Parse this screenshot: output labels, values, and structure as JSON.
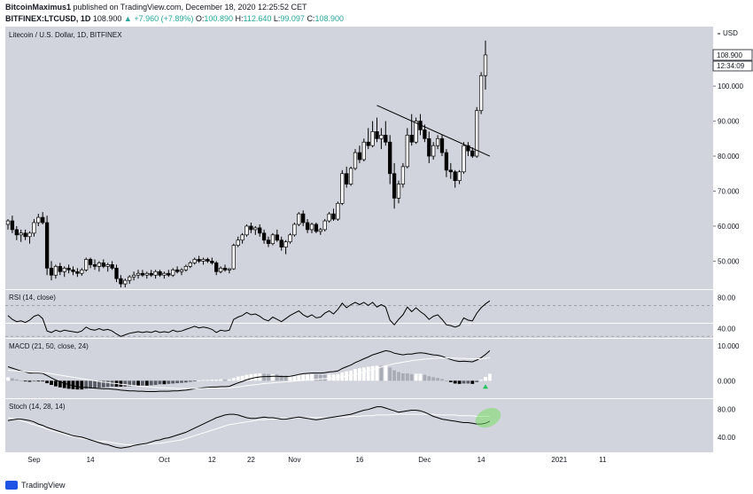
{
  "header": {
    "author": "BitcoinMaximus1",
    "published": "published on TradingView.com, December 18, 2020 12:25:52 CET",
    "symbol": "BITFINEX:LTCUSD, 1D",
    "last": "108.900",
    "change": "▲ +7.960 (+7.89%)",
    "o_label": "O:",
    "o": "100.890",
    "h_label": "H:",
    "h": "112.640",
    "l_label": "L:",
    "l": "99.097",
    "c_label": "C:",
    "c": "108.900"
  },
  "footer": {
    "brand": "TradingView"
  },
  "chart_data": {
    "type": "candlestick",
    "title": "Litecoin / U.S. Dollar, 1D, BITFINEX",
    "currency": "USD",
    "price_labels": {
      "last": "108.900",
      "countdown": "12:34:09"
    },
    "y_ticks": [
      "50.000",
      "60.000",
      "70.000",
      "80.000",
      "90.000",
      "100.000"
    ],
    "ylim": [
      42,
      117
    ],
    "x_ticks": [
      {
        "label": "Sep",
        "i": 6
      },
      {
        "label": "14",
        "i": 19
      },
      {
        "label": "Oct",
        "i": 36
      },
      {
        "label": "12",
        "i": 47
      },
      {
        "label": "22",
        "i": 56
      },
      {
        "label": "Nov",
        "i": 66
      },
      {
        "label": "16",
        "i": 81
      },
      {
        "label": "Dec",
        "i": 96
      },
      {
        "label": "14",
        "i": 109
      },
      {
        "label": "2021",
        "i": 127
      },
      {
        "label": "11",
        "i": 137
      }
    ],
    "candles": [
      [
        60.5,
        62,
        59,
        61.5
      ],
      [
        61.5,
        63,
        58,
        59
      ],
      [
        59,
        60,
        56,
        57.5
      ],
      [
        57.5,
        59,
        55.5,
        58
      ],
      [
        58,
        59,
        56,
        57
      ],
      [
        57,
        58.5,
        55,
        58
      ],
      [
        58,
        62,
        57,
        61
      ],
      [
        61,
        63.5,
        60,
        62.5
      ],
      [
        62.5,
        64,
        60.5,
        61
      ],
      [
        61,
        63,
        46,
        48
      ],
      [
        48,
        50,
        44.5,
        46
      ],
      [
        46,
        49,
        45,
        48.5
      ],
      [
        48.5,
        49.5,
        46,
        47
      ],
      [
        47,
        48.5,
        45.5,
        48
      ],
      [
        48,
        49,
        46.5,
        47.5
      ],
      [
        47.5,
        48.5,
        46,
        47
      ],
      [
        47,
        48,
        45.5,
        46.5
      ],
      [
        46.5,
        48,
        45.8,
        47.5
      ],
      [
        47.5,
        51,
        47,
        50.5
      ],
      [
        50.5,
        51,
        48,
        49
      ],
      [
        49,
        50.5,
        47.5,
        48.5
      ],
      [
        48.5,
        50,
        47,
        49.5
      ],
      [
        49.5,
        50.5,
        48,
        48.5
      ],
      [
        48.5,
        49.5,
        47,
        49
      ],
      [
        49,
        50,
        47.5,
        48
      ],
      [
        48,
        49,
        44,
        45
      ],
      [
        45,
        46,
        42.5,
        43.5
      ],
      [
        43.5,
        45,
        42.5,
        44.5
      ],
      [
        44.5,
        46,
        43.5,
        45.5
      ],
      [
        45.5,
        47,
        44.5,
        46
      ],
      [
        46,
        47.5,
        45,
        46.5
      ],
      [
        46.5,
        47.5,
        45.5,
        46
      ],
      [
        46,
        47,
        45,
        46.5
      ],
      [
        46.5,
        47.5,
        45.5,
        46
      ],
      [
        46,
        47.5,
        45,
        47
      ],
      [
        47,
        47.5,
        45.5,
        46
      ],
      [
        46,
        47,
        45,
        46.5
      ],
      [
        46.5,
        47.5,
        45.5,
        46
      ],
      [
        46,
        48,
        45.5,
        47.5
      ],
      [
        47.5,
        48.5,
        46.5,
        47
      ],
      [
        47,
        48,
        46,
        47.5
      ],
      [
        47.5,
        49,
        47,
        48.5
      ],
      [
        48.5,
        50,
        48,
        49.5
      ],
      [
        49.5,
        51,
        49,
        50.5
      ],
      [
        50.5,
        51.5,
        49.5,
        50
      ],
      [
        50,
        51,
        49,
        50.5
      ],
      [
        50.5,
        51,
        49.5,
        50
      ],
      [
        50,
        51,
        49,
        49.5
      ],
      [
        49.5,
        50,
        46,
        47
      ],
      [
        47,
        48.5,
        46.5,
        48
      ],
      [
        48,
        49,
        47,
        47.5
      ],
      [
        47.5,
        48,
        46.5,
        47.8
      ],
      [
        47.8,
        55,
        47.5,
        54.5
      ],
      [
        54.5,
        57,
        54,
        56
      ],
      [
        56,
        58,
        55,
        57.5
      ],
      [
        57.5,
        60.5,
        57,
        60
      ],
      [
        60,
        61,
        58,
        59
      ],
      [
        59,
        60,
        57.5,
        59.5
      ],
      [
        59.5,
        60.5,
        57,
        58
      ],
      [
        58,
        59,
        55,
        56
      ],
      [
        56,
        57,
        54,
        55
      ],
      [
        55,
        58,
        54.5,
        57.5
      ],
      [
        57.5,
        59,
        55.5,
        56
      ],
      [
        56,
        57,
        53,
        54
      ],
      [
        54,
        56,
        52,
        55.5
      ],
      [
        55.5,
        58,
        55,
        57.5
      ],
      [
        57.5,
        61,
        57,
        60.5
      ],
      [
        60.5,
        64,
        60,
        63.5
      ],
      [
        63.5,
        64.5,
        60,
        61
      ],
      [
        61,
        62,
        58,
        59
      ],
      [
        59,
        61,
        58,
        60.5
      ],
      [
        60.5,
        61,
        58,
        58.5
      ],
      [
        58.5,
        59.5,
        57.5,
        59
      ],
      [
        59,
        62,
        58.5,
        61.5
      ],
      [
        61.5,
        64,
        61,
        63.5
      ],
      [
        63.5,
        65,
        61.5,
        62
      ],
      [
        62,
        67,
        61.5,
        66.5
      ],
      [
        66.5,
        76,
        66,
        75
      ],
      [
        75,
        77,
        71,
        72
      ],
      [
        72,
        77,
        71.5,
        76.5
      ],
      [
        76.5,
        82,
        76,
        81
      ],
      [
        81,
        83,
        78,
        79
      ],
      [
        79,
        85,
        78.5,
        84
      ],
      [
        84,
        88,
        82,
        83
      ],
      [
        83,
        90,
        82.5,
        87
      ],
      [
        87,
        91,
        84,
        85
      ],
      [
        85,
        88,
        82,
        86
      ],
      [
        86,
        90,
        83,
        84
      ],
      [
        84,
        86,
        72,
        75
      ],
      [
        75,
        78,
        65,
        68
      ],
      [
        68,
        73,
        66.5,
        72
      ],
      [
        72,
        78,
        71,
        77
      ],
      [
        77,
        88,
        76.5,
        86
      ],
      [
        86,
        92,
        83,
        84
      ],
      [
        84,
        91,
        83.5,
        90
      ],
      [
        90,
        92,
        86,
        87.5
      ],
      [
        87.5,
        89,
        84,
        85
      ],
      [
        85,
        87,
        78,
        80
      ],
      [
        80,
        84,
        79,
        83
      ],
      [
        83,
        86,
        82,
        85
      ],
      [
        85,
        86,
        80,
        81
      ],
      [
        81,
        82,
        74,
        76
      ],
      [
        76,
        78,
        73.5,
        75.5
      ],
      [
        75.5,
        76,
        71,
        73
      ],
      [
        73,
        76,
        72,
        75.5
      ],
      [
        75.5,
        84,
        75,
        83
      ],
      [
        83,
        84,
        80,
        81.5
      ],
      [
        81.5,
        82.5,
        79.5,
        80
      ],
      [
        80,
        94,
        79.5,
        93
      ],
      [
        93,
        104,
        92,
        103
      ],
      [
        103,
        113,
        99,
        108.9
      ]
    ],
    "trendline": {
      "from": {
        "i": 85,
        "price": 94.5
      },
      "to": {
        "i": 111,
        "price": 80
      }
    },
    "rsi": {
      "label": "RSI (14, close)",
      "y_ticks": [
        "80.00",
        "40.00"
      ],
      "ylim": [
        28,
        90
      ],
      "upper": 70,
      "lower": 30,
      "signal": 47,
      "values": [
        57,
        52,
        49,
        50,
        48,
        51,
        56,
        58,
        53,
        37,
        35,
        38,
        36,
        38,
        37,
        36,
        35,
        37,
        42,
        39,
        38,
        40,
        38,
        39,
        37,
        33,
        30,
        32,
        34,
        35,
        36,
        35,
        36,
        35,
        37,
        35,
        36,
        35,
        38,
        36,
        37,
        39,
        41,
        43,
        41,
        42,
        41,
        39,
        35,
        38,
        37,
        38,
        52,
        55,
        57,
        61,
        58,
        59,
        56,
        52,
        50,
        55,
        52,
        49,
        53,
        57,
        60,
        63,
        58,
        55,
        58,
        54,
        55,
        60,
        63,
        59,
        65,
        73,
        67,
        71,
        74,
        71,
        74,
        70,
        74,
        68,
        71,
        68,
        51,
        45,
        52,
        58,
        68,
        62,
        67,
        62,
        58,
        52,
        56,
        58,
        52,
        45,
        44,
        42,
        44,
        54,
        51,
        50,
        60,
        67,
        72,
        76
      ]
    },
    "macd": {
      "label": "MACD (21, 50, close, 24)",
      "y_ticks": [
        "10.000",
        "0.000"
      ],
      "ylim": [
        -5,
        12
      ],
      "macd": [
        4,
        3.6,
        3.2,
        2.8,
        2.5,
        2.2,
        2.2,
        2.2,
        2.1,
        1.5,
        0.8,
        0.2,
        -0.3,
        -0.7,
        -1.1,
        -1.4,
        -1.7,
        -1.9,
        -1.9,
        -2.0,
        -2.1,
        -2.2,
        -2.3,
        -2.3,
        -2.4,
        -2.5,
        -2.7,
        -2.8,
        -2.9,
        -2.9,
        -3.0,
        -3.0,
        -3.1,
        -3.1,
        -3.1,
        -3.0,
        -3.0,
        -3.0,
        -2.9,
        -2.9,
        -2.8,
        -2.7,
        -2.5,
        -2.3,
        -2.1,
        -2.0,
        -1.9,
        -1.8,
        -1.8,
        -1.7,
        -1.7,
        -1.6,
        -1.1,
        -0.6,
        -0.2,
        0.3,
        0.6,
        0.9,
        1.1,
        1.2,
        1.2,
        1.3,
        1.3,
        1.2,
        1.2,
        1.3,
        1.5,
        1.8,
        2.0,
        2.1,
        2.2,
        2.2,
        2.2,
        2.3,
        2.5,
        2.6,
        2.8,
        3.5,
        4.0,
        4.5,
        5.2,
        5.7,
        6.3,
        6.8,
        7.4,
        7.8,
        8.2,
        8.6,
        8.4,
        7.9,
        7.6,
        7.4,
        7.6,
        7.6,
        7.9,
        8.0,
        7.9,
        7.6,
        7.4,
        7.3,
        7.0,
        6.5,
        6.1,
        5.7,
        5.5,
        5.6,
        5.5,
        5.4,
        5.9,
        6.6,
        7.5,
        8.6
      ],
      "signal": [
        3,
        2.9,
        2.8,
        2.7,
        2.6,
        2.5,
        2.4,
        2.4,
        2.3,
        2.2,
        2.0,
        1.8,
        1.6,
        1.4,
        1.2,
        1.0,
        0.8,
        0.6,
        0.4,
        0.2,
        0,
        -0.2,
        -0.4,
        -0.5,
        -0.7,
        -0.8,
        -1.0,
        -1.1,
        -1.3,
        -1.4,
        -1.5,
        -1.6,
        -1.7,
        -1.8,
        -1.9,
        -2.0,
        -2.0,
        -2.1,
        -2.1,
        -2.2,
        -2.2,
        -2.2,
        -2.2,
        -2.2,
        -2.2,
        -2.2,
        -2.1,
        -2.1,
        -2.1,
        -2.1,
        -2.0,
        -2.0,
        -1.9,
        -1.8,
        -1.6,
        -1.4,
        -1.3,
        -1.1,
        -1.0,
        -0.8,
        -0.7,
        -0.6,
        -0.5,
        -0.4,
        -0.3,
        -0.2,
        -0.1,
        0,
        0.1,
        0.2,
        0.3,
        0.4,
        0.5,
        0.6,
        0.7,
        0.8,
        0.9,
        1.1,
        1.3,
        1.6,
        1.8,
        2.1,
        2.5,
        2.8,
        3.2,
        3.5,
        3.9,
        4.3,
        4.6,
        4.9,
        5.1,
        5.3,
        5.5,
        5.7,
        5.9,
        6.0,
        6.2,
        6.3,
        6.4,
        6.5,
        6.5,
        6.5,
        6.5,
        6.5,
        6.4,
        6.4,
        6.3,
        6.3,
        6.3,
        6.3,
        6.4,
        6.6
      ]
    },
    "stoch": {
      "label": "Stoch (14, 28, 14)",
      "y_ticks": [
        "80.00",
        "40.00"
      ],
      "ylim": [
        18,
        95
      ],
      "k": [
        64,
        65,
        66,
        66,
        65,
        64,
        62,
        59,
        57,
        54,
        52,
        50,
        48,
        46,
        44,
        42,
        41,
        40,
        38,
        36,
        34,
        32,
        30,
        29,
        27,
        25,
        24,
        25,
        26,
        28,
        29,
        30,
        31,
        33,
        35,
        36,
        38,
        39,
        41,
        43,
        45,
        47,
        50,
        53,
        56,
        59,
        62,
        65,
        68,
        70,
        72,
        73,
        73,
        72,
        70,
        68,
        67,
        67,
        68,
        69,
        68,
        68,
        67,
        66,
        66,
        67,
        68,
        69,
        68,
        67,
        66,
        65,
        66,
        67,
        68,
        69,
        70,
        71,
        72,
        73,
        75,
        77,
        79,
        80,
        82,
        84,
        84,
        82,
        80,
        78,
        76,
        77,
        78,
        79,
        79,
        78,
        76,
        73,
        70,
        68,
        66,
        65,
        64,
        63,
        62,
        61,
        61,
        60,
        59,
        59,
        60,
        63
      ],
      "d": [
        68,
        67,
        66,
        64,
        62,
        60,
        58,
        56,
        54,
        52,
        50,
        48,
        46,
        44,
        42,
        41,
        40,
        38,
        37,
        36,
        35,
        34,
        34,
        33,
        32,
        31,
        30,
        29,
        29,
        29,
        29,
        29,
        30,
        30,
        31,
        31,
        32,
        33,
        34,
        35,
        36,
        38,
        40,
        42,
        44,
        46,
        48,
        50,
        52,
        54,
        56,
        58,
        59,
        60,
        61,
        62,
        63,
        64,
        65,
        65,
        66,
        66,
        66,
        67,
        67,
        67,
        67,
        68,
        68,
        68,
        68,
        68,
        68,
        68,
        68,
        69,
        69,
        69,
        69,
        70,
        70,
        70,
        71,
        71,
        71,
        72,
        72,
        72,
        72,
        73,
        73,
        73,
        73,
        73,
        73,
        73,
        73,
        73,
        73,
        72,
        72,
        72,
        72,
        72,
        71,
        71,
        71,
        71,
        70,
        70,
        70,
        70
      ]
    }
  }
}
